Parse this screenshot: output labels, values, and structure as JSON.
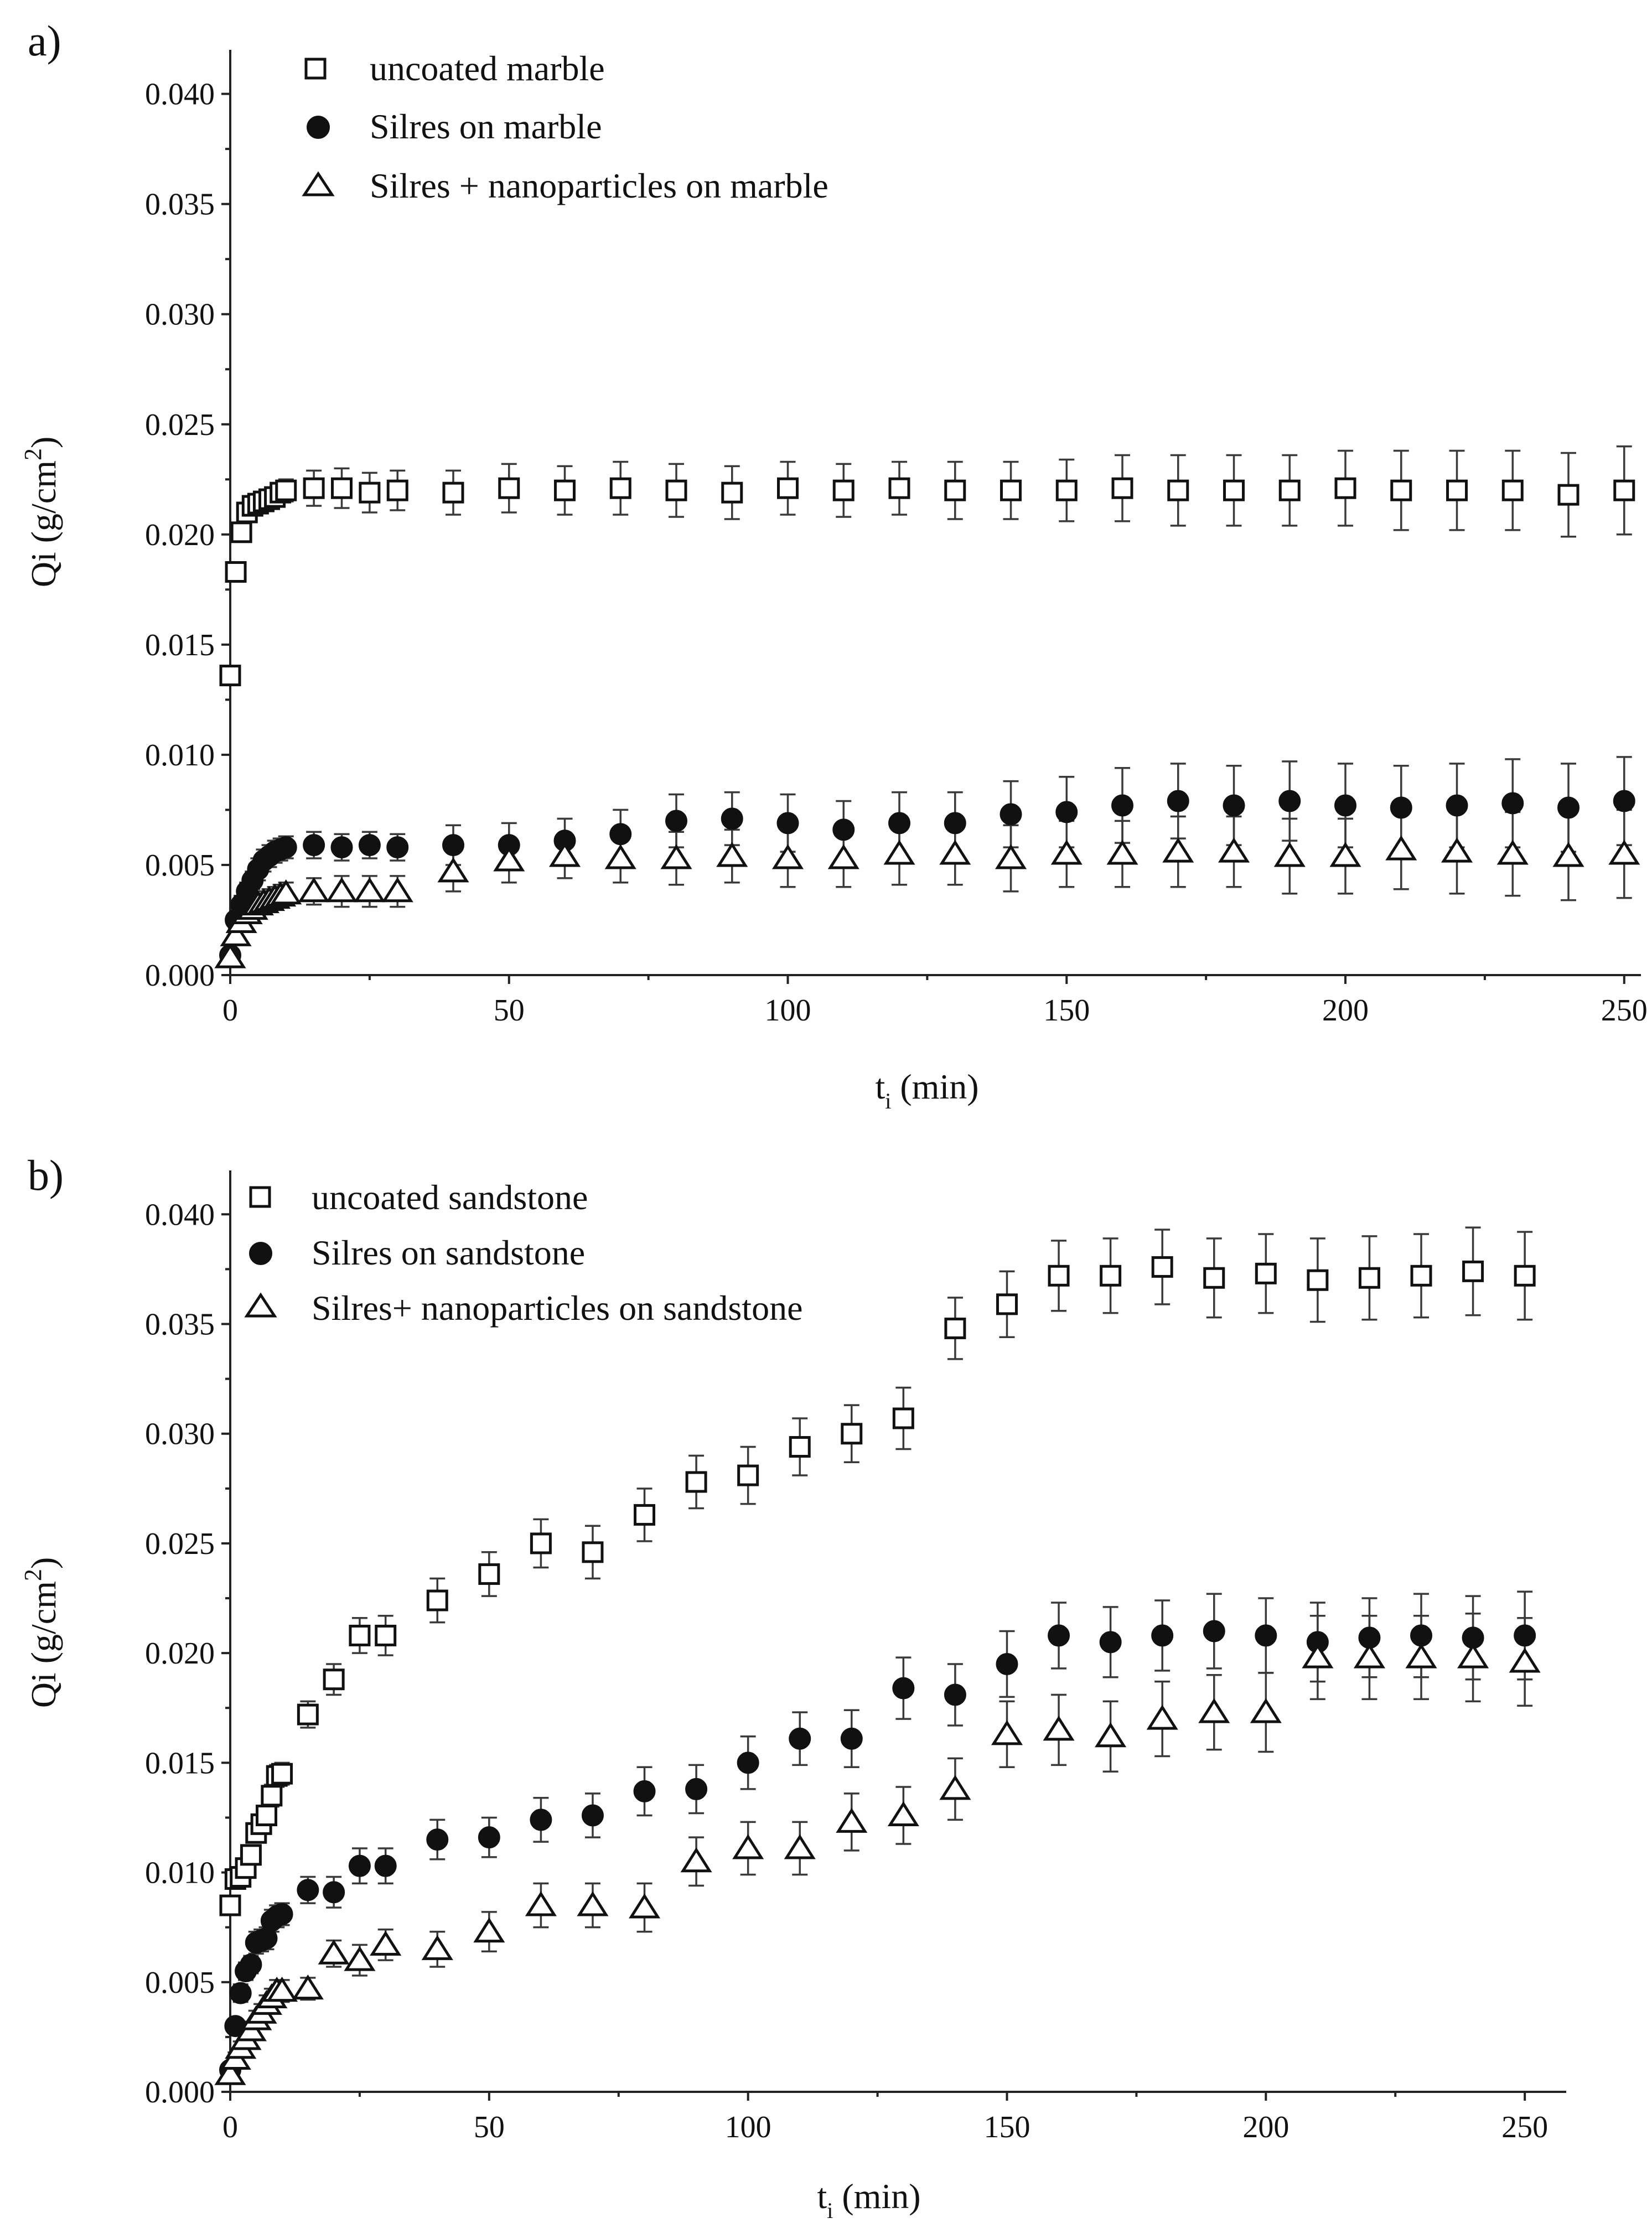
{
  "chart_data": [
    {
      "type": "scatter",
      "panel_label": "a)",
      "xlabel_main": "t",
      "xlabel_sub": "i",
      "xlabel_unit": "(min)",
      "ylabel_main": "Qi (g/cm",
      "ylabel_sup": "2",
      "ylabel_end": ")",
      "xlim": [
        0,
        253
      ],
      "ylim": [
        0,
        0.042
      ],
      "xticks": [
        0,
        50,
        100,
        150,
        200,
        250
      ],
      "yticks": [
        0.0,
        0.005,
        0.01,
        0.015,
        0.02,
        0.025,
        0.03,
        0.035,
        0.04
      ],
      "ytick_labels": [
        "0.000",
        "0.005",
        "0.010",
        "0.015",
        "0.020",
        "0.025",
        "0.030",
        "0.035",
        "0.040"
      ],
      "legend_position": "top-left",
      "series": [
        {
          "name": "uncoated marble",
          "marker": "square",
          "x": [
            0,
            1,
            2,
            3,
            4,
            5,
            6,
            7,
            8,
            9,
            10,
            15,
            20,
            25,
            30,
            40,
            50,
            60,
            70,
            80,
            90,
            100,
            110,
            120,
            130,
            140,
            150,
            160,
            170,
            180,
            190,
            200,
            210,
            220,
            230,
            240,
            250
          ],
          "y": [
            0.0136,
            0.0183,
            0.0201,
            0.021,
            0.0213,
            0.0214,
            0.0215,
            0.0216,
            0.0217,
            0.0219,
            0.022,
            0.0221,
            0.0221,
            0.0219,
            0.022,
            0.0219,
            0.0221,
            0.022,
            0.0221,
            0.022,
            0.0219,
            0.0221,
            0.022,
            0.0221,
            0.022,
            0.022,
            0.022,
            0.0221,
            0.022,
            0.022,
            0.022,
            0.0221,
            0.022,
            0.022,
            0.022,
            0.0218,
            0.022
          ],
          "err": [
            0.0003,
            0.0003,
            0.0004,
            0.0004,
            0.0004,
            0.0004,
            0.0004,
            0.0004,
            0.0004,
            0.0004,
            0.0005,
            0.0008,
            0.0009,
            0.0009,
            0.0009,
            0.001,
            0.0011,
            0.0011,
            0.0012,
            0.0012,
            0.0012,
            0.0012,
            0.0012,
            0.0012,
            0.0013,
            0.0013,
            0.0014,
            0.0015,
            0.0016,
            0.0016,
            0.0016,
            0.0017,
            0.0018,
            0.0018,
            0.0018,
            0.0019,
            0.002
          ]
        },
        {
          "name": "Silres on marble",
          "marker": "circle",
          "x": [
            0,
            1,
            2,
            3,
            4,
            5,
            6,
            7,
            8,
            9,
            10,
            15,
            20,
            25,
            30,
            40,
            50,
            60,
            70,
            80,
            90,
            100,
            110,
            120,
            130,
            140,
            150,
            160,
            170,
            180,
            190,
            200,
            210,
            220,
            230,
            240,
            250
          ],
          "y": [
            0.0009,
            0.0025,
            0.0032,
            0.0038,
            0.0043,
            0.0048,
            0.0052,
            0.0054,
            0.0056,
            0.0057,
            0.0058,
            0.0059,
            0.0058,
            0.0059,
            0.0058,
            0.0059,
            0.0059,
            0.0061,
            0.0064,
            0.007,
            0.0071,
            0.0069,
            0.0066,
            0.0069,
            0.0069,
            0.0073,
            0.0074,
            0.0077,
            0.0079,
            0.0077,
            0.0079,
            0.0077,
            0.0076,
            0.0077,
            0.0078,
            0.0076,
            0.0079
          ],
          "err": [
            0.0002,
            0.0003,
            0.0004,
            0.0004,
            0.0004,
            0.0005,
            0.0005,
            0.0005,
            0.0005,
            0.0005,
            0.0005,
            0.0006,
            0.0006,
            0.0006,
            0.0006,
            0.0009,
            0.001,
            0.001,
            0.0011,
            0.0012,
            0.0012,
            0.0013,
            0.0013,
            0.0014,
            0.0014,
            0.0015,
            0.0016,
            0.0017,
            0.0017,
            0.0018,
            0.0018,
            0.0019,
            0.0019,
            0.0019,
            0.002,
            0.002,
            0.002
          ]
        },
        {
          "name": "Silres + nanoparticles on marble",
          "marker": "triangle",
          "x": [
            0,
            1,
            2,
            3,
            4,
            5,
            6,
            7,
            8,
            9,
            10,
            15,
            20,
            25,
            30,
            40,
            50,
            60,
            70,
            80,
            90,
            100,
            110,
            120,
            130,
            140,
            150,
            160,
            170,
            180,
            190,
            200,
            210,
            220,
            230,
            240,
            250
          ],
          "y": [
            0.0008,
            0.0018,
            0.0024,
            0.0028,
            0.003,
            0.0032,
            0.0033,
            0.0034,
            0.0035,
            0.0036,
            0.0037,
            0.0038,
            0.0038,
            0.0038,
            0.0038,
            0.0047,
            0.0052,
            0.0054,
            0.0053,
            0.0053,
            0.0054,
            0.0053,
            0.0053,
            0.0055,
            0.0055,
            0.0053,
            0.0055,
            0.0055,
            0.0056,
            0.0056,
            0.0054,
            0.0054,
            0.0057,
            0.0056,
            0.0055,
            0.0054,
            0.0055
          ],
          "err": [
            0.0002,
            0.0003,
            0.0004,
            0.0004,
            0.0004,
            0.0005,
            0.0005,
            0.0005,
            0.0005,
            0.0005,
            0.0005,
            0.0006,
            0.0007,
            0.0007,
            0.0007,
            0.0009,
            0.001,
            0.001,
            0.0011,
            0.0012,
            0.0012,
            0.0013,
            0.0013,
            0.0014,
            0.0014,
            0.0015,
            0.0015,
            0.0015,
            0.0016,
            0.0016,
            0.0017,
            0.0017,
            0.0018,
            0.0019,
            0.0019,
            0.002,
            0.002
          ]
        }
      ]
    },
    {
      "type": "scatter",
      "panel_label": "b)",
      "xlabel_main": "t",
      "xlabel_sub": "i",
      "xlabel_unit": "(min)",
      "ylabel_main": "Qi (g/cm",
      "ylabel_sup": "2",
      "ylabel_end": ")",
      "xlim": [
        0,
        258
      ],
      "ylim": [
        0,
        0.042
      ],
      "xticks": [
        0,
        50,
        100,
        150,
        200,
        250
      ],
      "yticks": [
        0.0,
        0.005,
        0.01,
        0.015,
        0.02,
        0.025,
        0.03,
        0.035,
        0.04
      ],
      "ytick_labels": [
        "0.000",
        "0.005",
        "0.010",
        "0.015",
        "0.020",
        "0.025",
        "0.030",
        "0.035",
        "0.040"
      ],
      "legend_position": "top-left",
      "series": [
        {
          "name": "uncoated sandstone",
          "marker": "square",
          "x": [
            0,
            1,
            2,
            3,
            4,
            5,
            6,
            7,
            8,
            9,
            10,
            15,
            20,
            25,
            30,
            40,
            50,
            60,
            70,
            80,
            90,
            100,
            110,
            120,
            130,
            140,
            150,
            160,
            170,
            180,
            190,
            200,
            210,
            220,
            230,
            240,
            250
          ],
          "y": [
            0.0085,
            0.0097,
            0.0098,
            0.0102,
            0.0108,
            0.0118,
            0.0122,
            0.0126,
            0.0135,
            0.0144,
            0.0145,
            0.0172,
            0.0188,
            0.0208,
            0.0208,
            0.0224,
            0.0236,
            0.025,
            0.0246,
            0.0263,
            0.0278,
            0.0281,
            0.0294,
            0.03,
            0.0307,
            0.0348,
            0.0359,
            0.0372,
            0.0372,
            0.0376,
            0.0371,
            0.0373,
            0.037,
            0.0371,
            0.0372,
            0.0374,
            0.0372
          ],
          "err": [
            0.0003,
            0.0003,
            0.0003,
            0.0003,
            0.0004,
            0.0004,
            0.0004,
            0.0004,
            0.0005,
            0.0005,
            0.0005,
            0.0006,
            0.0007,
            0.0008,
            0.0009,
            0.001,
            0.001,
            0.0011,
            0.0012,
            0.0012,
            0.0012,
            0.0013,
            0.0013,
            0.0013,
            0.0014,
            0.0014,
            0.0015,
            0.0016,
            0.0017,
            0.0017,
            0.0018,
            0.0018,
            0.0019,
            0.0019,
            0.0019,
            0.002,
            0.002
          ]
        },
        {
          "name": "Silres on sandstone",
          "marker": "circle",
          "x": [
            0,
            1,
            2,
            3,
            4,
            5,
            6,
            7,
            8,
            9,
            10,
            15,
            20,
            25,
            30,
            40,
            50,
            60,
            70,
            80,
            90,
            100,
            110,
            120,
            130,
            140,
            150,
            160,
            170,
            180,
            190,
            200,
            210,
            220,
            230,
            240,
            250
          ],
          "y": [
            0.001,
            0.003,
            0.0045,
            0.0055,
            0.0058,
            0.0068,
            0.0069,
            0.007,
            0.0078,
            0.008,
            0.0081,
            0.0092,
            0.0091,
            0.0103,
            0.0103,
            0.0115,
            0.0116,
            0.0124,
            0.0126,
            0.0137,
            0.0138,
            0.015,
            0.0161,
            0.0161,
            0.0184,
            0.0181,
            0.0195,
            0.0208,
            0.0205,
            0.0208,
            0.021,
            0.0208,
            0.0205,
            0.0207,
            0.0208,
            0.0207,
            0.0208
          ],
          "err": [
            0.0002,
            0.0003,
            0.0004,
            0.0004,
            0.0004,
            0.0005,
            0.0005,
            0.0005,
            0.0005,
            0.0005,
            0.0005,
            0.0006,
            0.0007,
            0.0008,
            0.0008,
            0.0009,
            0.0009,
            0.001,
            0.001,
            0.0011,
            0.0011,
            0.0012,
            0.0012,
            0.0013,
            0.0014,
            0.0014,
            0.0015,
            0.0015,
            0.0016,
            0.0016,
            0.0017,
            0.0017,
            0.0018,
            0.0018,
            0.0019,
            0.0019,
            0.002
          ]
        },
        {
          "name": "Silres+ nanoparticles on sandstone",
          "marker": "triangle",
          "x": [
            0,
            1,
            2,
            3,
            4,
            5,
            6,
            7,
            8,
            9,
            10,
            15,
            20,
            25,
            30,
            40,
            50,
            60,
            70,
            80,
            90,
            100,
            110,
            120,
            130,
            140,
            150,
            160,
            170,
            180,
            190,
            200,
            210,
            220,
            230,
            240,
            250
          ],
          "y": [
            0.0008,
            0.0015,
            0.002,
            0.0024,
            0.0028,
            0.0033,
            0.0036,
            0.004,
            0.0043,
            0.0046,
            0.0046,
            0.0047,
            0.0063,
            0.006,
            0.0067,
            0.0065,
            0.0073,
            0.0085,
            0.0085,
            0.0084,
            0.0105,
            0.0111,
            0.0111,
            0.0123,
            0.0126,
            0.0138,
            0.0163,
            0.0165,
            0.0162,
            0.017,
            0.0173,
            0.0173,
            0.0198,
            0.0198,
            0.0198,
            0.0198,
            0.0196
          ],
          "err": [
            0.0002,
            0.0003,
            0.0003,
            0.0003,
            0.0004,
            0.0004,
            0.0004,
            0.0004,
            0.0004,
            0.0005,
            0.0005,
            0.0005,
            0.0006,
            0.0007,
            0.0007,
            0.0008,
            0.0009,
            0.001,
            0.001,
            0.0011,
            0.0011,
            0.0012,
            0.0012,
            0.0013,
            0.0013,
            0.0014,
            0.0015,
            0.0016,
            0.0016,
            0.0017,
            0.0017,
            0.0018,
            0.0019,
            0.0019,
            0.0019,
            0.002,
            0.002
          ]
        }
      ]
    }
  ]
}
